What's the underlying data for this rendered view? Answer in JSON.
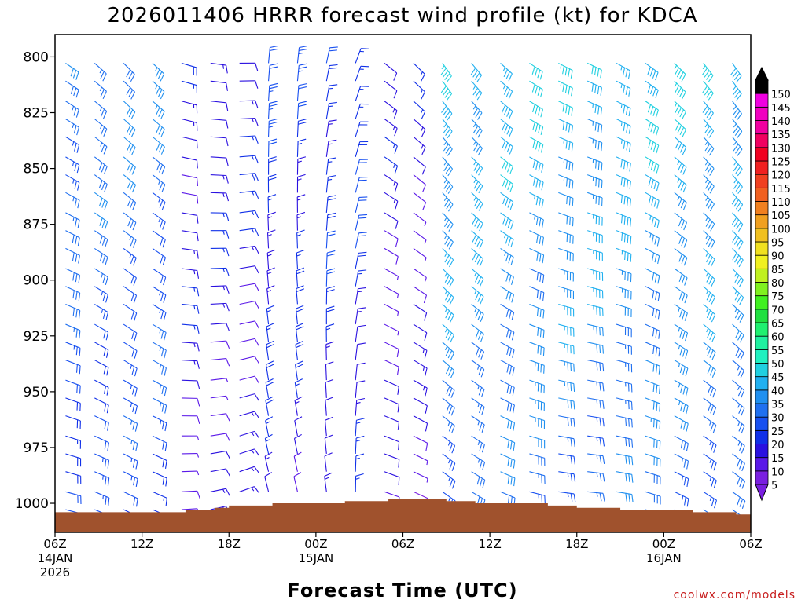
{
  "chart_data": {
    "type": "wind-barb-timeseries",
    "title": "2026011406 HRRR forecast wind profile (kt) for KDCA",
    "xlabel": "Forecast Time (UTC)",
    "ylabel": "",
    "y_ticks": [
      800,
      825,
      850,
      875,
      900,
      925,
      950,
      975,
      1000
    ],
    "ylim": [
      790,
      1013
    ],
    "x_ticks": [
      {
        "hour": 0,
        "lines": [
          "06Z",
          "14JAN",
          "2026"
        ]
      },
      {
        "hour": 6,
        "lines": [
          "12Z"
        ]
      },
      {
        "hour": 12,
        "lines": [
          "18Z"
        ]
      },
      {
        "hour": 18,
        "lines": [
          "00Z",
          "15JAN"
        ]
      },
      {
        "hour": 24,
        "lines": [
          "06Z"
        ]
      },
      {
        "hour": 30,
        "lines": [
          "12Z"
        ]
      },
      {
        "hour": 36,
        "lines": [
          "18Z"
        ]
      },
      {
        "hour": 42,
        "lines": [
          "00Z",
          "16JAN"
        ]
      },
      {
        "hour": 48,
        "lines": [
          "06Z"
        ]
      }
    ],
    "xlim": [
      0,
      48
    ],
    "barb_levels": [
      1000,
      992,
      983,
      975,
      967,
      958,
      950,
      942,
      933,
      925,
      917,
      908,
      900,
      892,
      883,
      875,
      867,
      858,
      850,
      842,
      833,
      825,
      817,
      808,
      800
    ],
    "barb_hours_step": 2,
    "surface_pressure": [
      1004,
      1004,
      1004,
      1004,
      1004,
      1004,
      1004,
      1004,
      1004,
      1003,
      1003,
      1002,
      1001,
      1001,
      1001,
      1000,
      1000,
      1000,
      1000,
      1000,
      999,
      999,
      999,
      998,
      998,
      998,
      998,
      999,
      999,
      1000,
      1000,
      1000,
      1000,
      1000,
      1001,
      1001,
      1002,
      1002,
      1002,
      1003,
      1003,
      1003,
      1003,
      1003,
      1004,
      1004,
      1004,
      1005,
      1005
    ],
    "surface_fill_color": "#a0522d",
    "wind_regimes": [
      {
        "hours": [
          0,
          8
        ],
        "speed_kt": 30,
        "direction_deg": 300
      },
      {
        "hours": [
          8,
          14
        ],
        "speed_kt": 15,
        "direction_deg": 280
      },
      {
        "hours": [
          14,
          22
        ],
        "speed_kt": 20,
        "direction_deg": 200
      },
      {
        "hours": [
          22,
          26
        ],
        "speed_kt": 12,
        "direction_deg": 300
      },
      {
        "hours": [
          26,
          48
        ],
        "speed_kt": 40,
        "direction_deg": 310
      }
    ],
    "colorbar": {
      "levels": [
        5,
        10,
        15,
        20,
        25,
        30,
        35,
        40,
        45,
        50,
        55,
        60,
        65,
        70,
        75,
        80,
        85,
        90,
        95,
        100,
        105,
        110,
        115,
        120,
        125,
        130,
        135,
        140,
        145,
        150
      ],
      "colors": [
        "#7a1fe0",
        "#5a18e8",
        "#2a10e0",
        "#1030e8",
        "#1850f0",
        "#2070f0",
        "#2090f0",
        "#20b0f0",
        "#20d0e0",
        "#20f0c0",
        "#20f0a0",
        "#20f070",
        "#20e040",
        "#40f020",
        "#80f020",
        "#c0f020",
        "#f0f020",
        "#f0e020",
        "#f0c020",
        "#f0a020",
        "#f08020",
        "#f06020",
        "#f04020",
        "#f02020",
        "#f00020",
        "#f00060",
        "#f000a0",
        "#f000c0",
        "#f000e0",
        "#000000"
      ]
    }
  },
  "credit": "coolwx.com/models"
}
